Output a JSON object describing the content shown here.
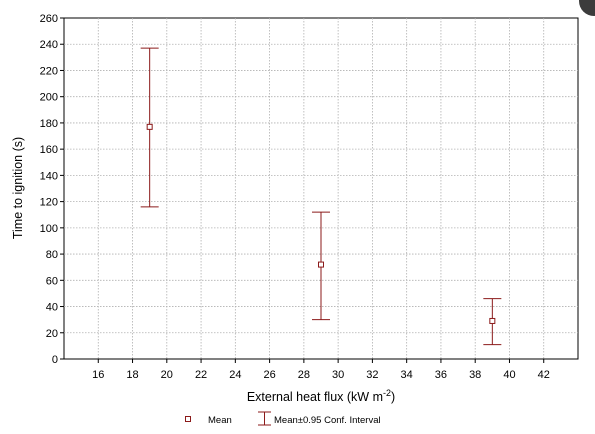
{
  "chart_data": {
    "type": "scatter",
    "title": "",
    "xlabel": "External heat flux (kW m",
    "xlabel_superscript": "-2",
    "xlabel_suffix": ")",
    "ylabel": "Time to ignition (s)",
    "xlim": [
      14,
      44
    ],
    "ylim": [
      0,
      260
    ],
    "xticks": [
      16,
      18,
      20,
      22,
      24,
      26,
      28,
      30,
      32,
      34,
      36,
      38,
      40,
      42
    ],
    "yticks": [
      0,
      20,
      40,
      60,
      80,
      100,
      120,
      140,
      160,
      180,
      200,
      220,
      240,
      260
    ],
    "grid": true,
    "legend_position": "bottom-center",
    "series": [
      {
        "name": "Mean",
        "marker": "open-square"
      },
      {
        "name": "Mean±0.95 Conf. Interval",
        "marker": "error-bar"
      }
    ],
    "points": [
      {
        "x": 19,
        "mean": 177,
        "lower": 116,
        "upper": 237
      },
      {
        "x": 29,
        "mean": 72,
        "lower": 30,
        "upper": 112
      },
      {
        "x": 39,
        "mean": 29,
        "lower": 11,
        "upper": 46
      }
    ],
    "colors": {
      "series": "#8b1a1a",
      "axis": "#000000",
      "grid": "#b0b0b0",
      "text": "#000000"
    }
  }
}
